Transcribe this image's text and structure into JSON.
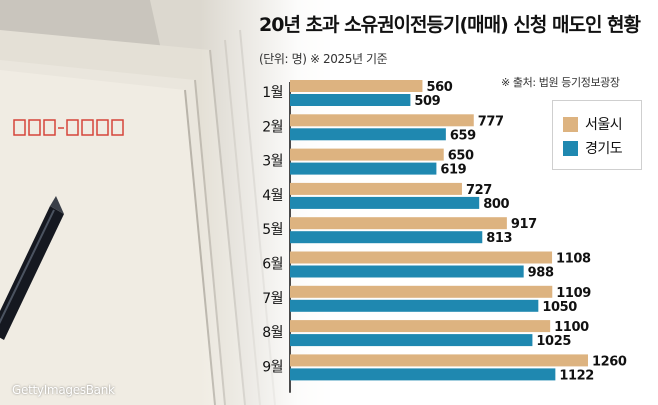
{
  "title": "20년 초과 소유권이전등기(매매) 신청 매도인 현황",
  "unit_note": "(단위: 명) ※ 2025년 기준",
  "source_note": "※ 출처: 법원 등기정보광장",
  "watermark": "GettyImagesBank",
  "colors": {
    "seoul": "#DDB380",
    "gyeonggi": "#1F88B0",
    "baseline": "#111111"
  },
  "chart_data": {
    "type": "bar",
    "orientation": "horizontal",
    "categories": [
      "1월",
      "2월",
      "3월",
      "4월",
      "5월",
      "6월",
      "7월",
      "8월",
      "9월"
    ],
    "series": [
      {
        "name": "서울시",
        "values": [
          560,
          777,
          650,
          727,
          917,
          1108,
          1109,
          1100,
          1260
        ]
      },
      {
        "name": "경기도",
        "values": [
          509,
          659,
          619,
          800,
          813,
          988,
          1050,
          1025,
          1122
        ]
      }
    ],
    "xlim": [
      0,
      1260
    ],
    "legend": "right",
    "grid": false,
    "data_labels": true
  }
}
